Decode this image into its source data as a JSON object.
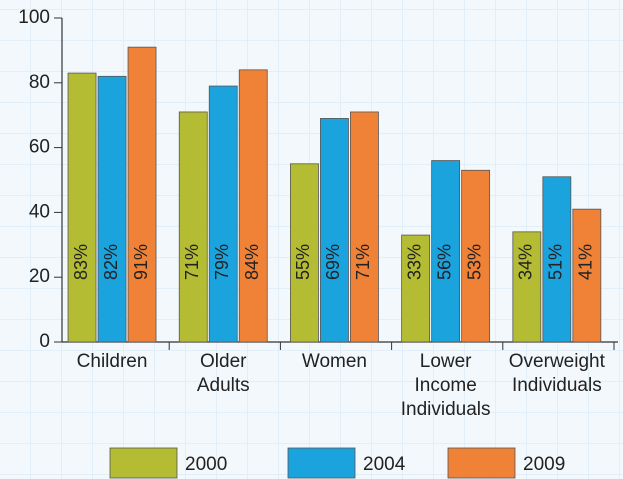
{
  "chart_data": {
    "type": "bar",
    "categories": [
      "Children",
      "Older Adults",
      "Women",
      "Lower Income Individuals",
      "Overweight Individuals"
    ],
    "series": [
      {
        "name": "2000",
        "color": "#b4bc33",
        "values": [
          83,
          71,
          55,
          33,
          34
        ],
        "value_labels": [
          "83%",
          "71%",
          "55%",
          "33%",
          "34%"
        ]
      },
      {
        "name": "2004",
        "color": "#1ba3de",
        "values": [
          82,
          79,
          69,
          56,
          51
        ],
        "value_labels": [
          "82%",
          "79%",
          "69%",
          "56%",
          "51%"
        ]
      },
      {
        "name": "2009",
        "color": "#f08237",
        "values": [
          91,
          84,
          71,
          53,
          41
        ],
        "value_labels": [
          "91%",
          "84%",
          "71%",
          "53%",
          "41%"
        ]
      }
    ],
    "ylim": [
      0,
      100
    ],
    "yticks": [
      0,
      20,
      40,
      60,
      80,
      100
    ],
    "grid": false,
    "legend": "bottom"
  }
}
